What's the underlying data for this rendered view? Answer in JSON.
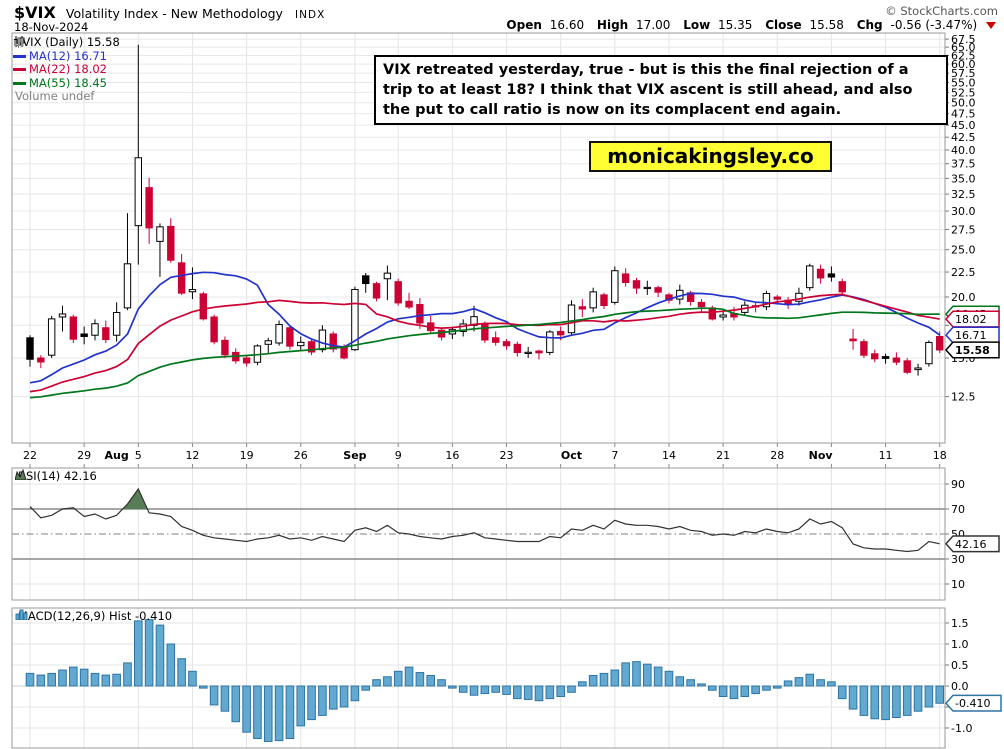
{
  "header": {
    "symbol": "$VIX",
    "name": "Volatility Index - New Methodology",
    "exchange": "INDX",
    "date": "18-Nov-2024",
    "credit": "© StockCharts.com"
  },
  "quote": {
    "open_label": "Open",
    "open": "16.60",
    "high_label": "High",
    "high": "17.00",
    "low_label": "Low",
    "low": "15.35",
    "close_label": "Close",
    "close": "15.58",
    "chg_label": "Chg",
    "chg": "-0.56 (-3.47%)"
  },
  "legend": {
    "symbol_label": "$VIX (Daily)",
    "symbol_value": "15.58",
    "ma12_label": "MA(12)",
    "ma12_value": "16.71",
    "ma22_label": "MA(22)",
    "ma22_value": "18.02",
    "ma55_label": "MA(55)",
    "ma55_value": "18.45",
    "volume_label": "Volume",
    "volume_value": "undef"
  },
  "rsi_header": {
    "label": "RSI(14)",
    "value": "42.16"
  },
  "macd_header": {
    "label": "MACD(12,26,9) Hist",
    "value": "-0.410"
  },
  "annotation": "VIX retreated yesterday, true - but is this the final rejection of a trip to at least 18? I think that VIX ascent is still ahead, and also the put to call ratio is now on its complacent end again.",
  "brand": "monicakingsley.co",
  "colors": {
    "down": "#cc0033",
    "up_border": "#000000",
    "ma12": "#2233cc",
    "ma22": "#cc0033",
    "ma55": "#00761c",
    "macd_bar": "#62a9d1",
    "macd_border": "#2e74a3",
    "rsi_fill": "#567d56",
    "brand_bg": "#ffff33",
    "grid": "#e4e4e4",
    "panel_border": "#9a9a9a"
  },
  "chart_data": [
    {
      "type": "candlestick",
      "title": "$VIX (Daily)",
      "scale": "log",
      "ylim": [
        12.5,
        67.5
      ],
      "y_ticks": [
        67.5,
        65,
        62.5,
        60,
        57.5,
        55,
        52.5,
        50,
        47.5,
        45,
        42.5,
        40,
        37.5,
        35,
        32.5,
        30,
        27.5,
        25,
        22.5,
        20,
        17.5,
        15,
        12.5
      ],
      "dates": [
        "Jul 22",
        "Jul 23",
        "Jul 24",
        "Jul 25",
        "Jul 26",
        "Jul 29",
        "Jul 30",
        "Jul 31",
        "Aug 1",
        "Aug 2",
        "Aug 5",
        "Aug 6",
        "Aug 7",
        "Aug 8",
        "Aug 9",
        "Aug 12",
        "Aug 13",
        "Aug 14",
        "Aug 15",
        "Aug 16",
        "Aug 19",
        "Aug 20",
        "Aug 21",
        "Aug 22",
        "Aug 23",
        "Aug 26",
        "Aug 27",
        "Aug 28",
        "Aug 29",
        "Aug 30",
        "Sep 3",
        "Sep 4",
        "Sep 5",
        "Sep 6",
        "Sep 9",
        "Sep 10",
        "Sep 11",
        "Sep 12",
        "Sep 13",
        "Sep 16",
        "Sep 17",
        "Sep 18",
        "Sep 19",
        "Sep 20",
        "Sep 23",
        "Sep 24",
        "Sep 25",
        "Sep 26",
        "Sep 27",
        "Sep 30",
        "Oct 1",
        "Oct 2",
        "Oct 3",
        "Oct 4",
        "Oct 7",
        "Oct 8",
        "Oct 9",
        "Oct 10",
        "Oct 11",
        "Oct 14",
        "Oct 15",
        "Oct 16",
        "Oct 17",
        "Oct 18",
        "Oct 21",
        "Oct 22",
        "Oct 23",
        "Oct 24",
        "Oct 25",
        "Oct 28",
        "Oct 29",
        "Oct 30",
        "Oct 31",
        "Nov 1",
        "Nov 4",
        "Nov 5",
        "Nov 6",
        "Nov 7",
        "Nov 8",
        "Nov 11",
        "Nov 12",
        "Nov 13",
        "Nov 14",
        "Nov 15",
        "Nov 18"
      ],
      "ohlc": [
        [
          16.5,
          16.7,
          14.4,
          14.91
        ],
        [
          15.0,
          15.2,
          14.3,
          14.72
        ],
        [
          15.2,
          18.3,
          15.0,
          18.04
        ],
        [
          18.2,
          19.2,
          17.0,
          18.46
        ],
        [
          18.2,
          18.4,
          16.1,
          16.39
        ],
        [
          16.8,
          17.4,
          16.0,
          16.6
        ],
        [
          16.7,
          18.0,
          16.3,
          17.63
        ],
        [
          17.3,
          17.9,
          16.1,
          16.36
        ],
        [
          16.7,
          19.5,
          16.2,
          18.59
        ],
        [
          19.0,
          29.7,
          18.8,
          23.39
        ],
        [
          28.0,
          65.73,
          23.3,
          38.57
        ],
        [
          33.5,
          35.1,
          25.7,
          27.71
        ],
        [
          26.0,
          28.3,
          22.0,
          27.85
        ],
        [
          27.9,
          29.0,
          23.5,
          23.79
        ],
        [
          23.5,
          24.5,
          20.2,
          20.37
        ],
        [
          20.5,
          23.0,
          19.8,
          20.71
        ],
        [
          20.3,
          20.5,
          17.9,
          18.04
        ],
        [
          18.2,
          18.4,
          16.0,
          16.19
        ],
        [
          16.3,
          16.6,
          15.0,
          15.23
        ],
        [
          15.4,
          15.7,
          14.6,
          14.8
        ],
        [
          15.0,
          15.2,
          14.4,
          14.65
        ],
        [
          14.7,
          16.0,
          14.5,
          15.88
        ],
        [
          16.0,
          16.5,
          15.3,
          16.27
        ],
        [
          16.1,
          17.9,
          15.9,
          17.56
        ],
        [
          17.3,
          17.4,
          15.6,
          15.86
        ],
        [
          15.9,
          16.6,
          15.5,
          16.15
        ],
        [
          16.2,
          16.4,
          15.2,
          15.43
        ],
        [
          15.6,
          17.5,
          15.4,
          17.11
        ],
        [
          16.8,
          17.0,
          15.4,
          15.65
        ],
        [
          15.8,
          16.0,
          14.9,
          15.0
        ],
        [
          15.6,
          21.0,
          15.5,
          20.72
        ],
        [
          22.1,
          22.4,
          20.4,
          21.31
        ],
        [
          21.3,
          21.5,
          19.6,
          19.9
        ],
        [
          21.8,
          23.2,
          19.7,
          22.38
        ],
        [
          21.5,
          21.8,
          19.2,
          19.45
        ],
        [
          19.6,
          20.4,
          18.9,
          19.08
        ],
        [
          19.3,
          19.9,
          17.2,
          17.69
        ],
        [
          17.7,
          18.3,
          16.9,
          17.07
        ],
        [
          17.1,
          17.3,
          16.3,
          16.56
        ],
        [
          16.8,
          17.4,
          16.4,
          17.14
        ],
        [
          17.0,
          18.0,
          16.6,
          17.61
        ],
        [
          17.5,
          19.2,
          17.0,
          18.23
        ],
        [
          17.6,
          17.8,
          16.1,
          16.33
        ],
        [
          16.5,
          17.0,
          15.9,
          16.15
        ],
        [
          16.2,
          16.4,
          15.6,
          15.89
        ],
        [
          16.0,
          16.2,
          15.1,
          15.39
        ],
        [
          15.4,
          15.8,
          15.0,
          15.41
        ],
        [
          15.5,
          15.6,
          14.9,
          15.37
        ],
        [
          15.4,
          17.1,
          15.2,
          16.96
        ],
        [
          17.0,
          17.4,
          16.3,
          16.73
        ],
        [
          16.9,
          19.7,
          16.7,
          19.26
        ],
        [
          19.1,
          19.8,
          18.2,
          18.9
        ],
        [
          19.0,
          20.9,
          18.6,
          20.49
        ],
        [
          20.2,
          20.4,
          18.9,
          19.21
        ],
        [
          19.5,
          23.1,
          19.3,
          22.64
        ],
        [
          22.3,
          22.9,
          21.0,
          21.42
        ],
        [
          21.6,
          21.9,
          20.3,
          20.86
        ],
        [
          20.9,
          21.6,
          20.2,
          20.93
        ],
        [
          20.9,
          21.1,
          20.0,
          20.46
        ],
        [
          20.2,
          20.4,
          19.4,
          19.7
        ],
        [
          19.8,
          21.2,
          19.3,
          20.64
        ],
        [
          20.4,
          20.6,
          19.2,
          19.58
        ],
        [
          19.5,
          19.8,
          18.7,
          19.11
        ],
        [
          19.0,
          19.2,
          17.9,
          18.03
        ],
        [
          18.2,
          18.9,
          17.9,
          18.37
        ],
        [
          18.5,
          19.1,
          17.9,
          18.2
        ],
        [
          18.6,
          19.6,
          18.3,
          19.24
        ],
        [
          19.2,
          19.5,
          18.6,
          19.08
        ],
        [
          19.1,
          20.6,
          18.8,
          20.33
        ],
        [
          20.0,
          20.2,
          19.3,
          19.8
        ],
        [
          19.7,
          20.0,
          18.9,
          19.34
        ],
        [
          19.6,
          20.9,
          19.2,
          20.35
        ],
        [
          20.9,
          23.4,
          20.6,
          23.16
        ],
        [
          22.8,
          23.3,
          21.3,
          21.88
        ],
        [
          22.3,
          23.1,
          21.5,
          21.98
        ],
        [
          21.5,
          21.8,
          20.1,
          20.49
        ],
        [
          16.4,
          17.2,
          15.6,
          16.27
        ],
        [
          16.2,
          16.4,
          15.0,
          15.2
        ],
        [
          15.3,
          15.6,
          14.7,
          14.94
        ],
        [
          15.1,
          15.3,
          14.6,
          14.97
        ],
        [
          15.0,
          15.4,
          14.5,
          14.71
        ],
        [
          14.8,
          15.0,
          13.9,
          14.02
        ],
        [
          14.2,
          14.6,
          13.8,
          14.31
        ],
        [
          14.6,
          16.3,
          14.4,
          16.14
        ],
        [
          16.6,
          17.0,
          15.35,
          15.58
        ]
      ],
      "ma": [
        {
          "name": "MA(12)",
          "period": 12,
          "seed": 13.2,
          "last": 16.71
        },
        {
          "name": "MA(22)",
          "period": 22,
          "seed": 12.7,
          "last": 18.02
        },
        {
          "name": "MA(55)",
          "period": 55,
          "seed": 12.4,
          "last": 18.45
        }
      ],
      "x_ticks": [
        {
          "i": 0,
          "label": "22",
          "bold": false
        },
        {
          "i": 5,
          "label": "29",
          "bold": false
        },
        {
          "i": 8,
          "label": "Aug",
          "bold": true
        },
        {
          "i": 10,
          "label": "5",
          "bold": false
        },
        {
          "i": 15,
          "label": "12",
          "bold": false
        },
        {
          "i": 20,
          "label": "19",
          "bold": false
        },
        {
          "i": 25,
          "label": "26",
          "bold": false
        },
        {
          "i": 30,
          "label": "Sep",
          "bold": true
        },
        {
          "i": 34,
          "label": "9",
          "bold": false
        },
        {
          "i": 39,
          "label": "16",
          "bold": false
        },
        {
          "i": 44,
          "label": "23",
          "bold": false
        },
        {
          "i": 50,
          "label": "Oct",
          "bold": true
        },
        {
          "i": 54,
          "label": "7",
          "bold": false
        },
        {
          "i": 59,
          "label": "14",
          "bold": false
        },
        {
          "i": 64,
          "label": "21",
          "bold": false
        },
        {
          "i": 69,
          "label": "28",
          "bold": false
        },
        {
          "i": 73,
          "label": "Nov",
          "bold": true
        },
        {
          "i": 79,
          "label": "11",
          "bold": false
        },
        {
          "i": 84,
          "label": "18",
          "bold": false
        }
      ],
      "grid_i": [
        0,
        5,
        10,
        15,
        20,
        25,
        30,
        34,
        39,
        44,
        49,
        54,
        59,
        64,
        69,
        74,
        79,
        84
      ],
      "price_labels": [
        {
          "value": 18.45,
          "text": "18.45",
          "color": "#00761c",
          "bold": false
        },
        {
          "value": 18.02,
          "text": "18.02",
          "color": "#cc0033",
          "bold": false
        },
        {
          "value": 16.71,
          "text": "16.71",
          "color": "#2233cc",
          "bold": false
        },
        {
          "value": 15.58,
          "text": "15.58",
          "color": "#000000",
          "bold": true
        }
      ]
    },
    {
      "type": "line",
      "name": "RSI(14)",
      "ylim": [
        0,
        100
      ],
      "ticks": [
        90,
        70,
        50,
        30,
        10
      ],
      "bands": {
        "overbought": 70,
        "mid": 50,
        "oversold": 30
      },
      "values": [
        72,
        63,
        65,
        70,
        71,
        64,
        66,
        62,
        65,
        74,
        86,
        67,
        66,
        64,
        56,
        53,
        49,
        47,
        46,
        45,
        44,
        46,
        47,
        49,
        46,
        47,
        45,
        48,
        46,
        44,
        53,
        55,
        52,
        57,
        51,
        50,
        48,
        47,
        46,
        48,
        49,
        51,
        47,
        46,
        45,
        44,
        44,
        44,
        48,
        47,
        54,
        53,
        57,
        54,
        61,
        58,
        57,
        57,
        56,
        54,
        56,
        53,
        52,
        49,
        50,
        49,
        52,
        51,
        54,
        52,
        51,
        54,
        62,
        58,
        60,
        55,
        42,
        39,
        38,
        38,
        37,
        36,
        37,
        44,
        42.16
      ],
      "last_label": {
        "value": 42.16,
        "text": "42.16"
      }
    },
    {
      "type": "bar",
      "name": "MACD(12,26,9) Histogram",
      "ylim": [
        1.85,
        -1.5
      ],
      "ticks": [
        1.5,
        1.0,
        0.5,
        0.0,
        -0.5,
        -1.0
      ],
      "values": [
        0.3,
        0.26,
        0.3,
        0.38,
        0.45,
        0.4,
        0.3,
        0.26,
        0.28,
        0.55,
        1.55,
        1.58,
        1.45,
        1.0,
        0.65,
        0.35,
        -0.05,
        -0.45,
        -0.6,
        -0.85,
        -1.1,
        -1.25,
        -1.32,
        -1.3,
        -1.25,
        -0.95,
        -0.8,
        -0.7,
        -0.55,
        -0.5,
        -0.35,
        -0.1,
        0.15,
        0.22,
        0.35,
        0.45,
        0.32,
        0.25,
        0.15,
        -0.05,
        -0.15,
        -0.22,
        -0.18,
        -0.15,
        -0.2,
        -0.3,
        -0.32,
        -0.35,
        -0.3,
        -0.25,
        -0.15,
        0.1,
        0.25,
        0.3,
        0.38,
        0.55,
        0.58,
        0.52,
        0.45,
        0.35,
        0.22,
        0.15,
        0.05,
        -0.1,
        -0.25,
        -0.3,
        -0.25,
        -0.18,
        -0.1,
        -0.05,
        0.12,
        0.2,
        0.28,
        0.15,
        0.1,
        -0.3,
        -0.55,
        -0.7,
        -0.78,
        -0.8,
        -0.75,
        -0.7,
        -0.6,
        -0.5,
        -0.41
      ],
      "last_label": {
        "value": -0.41,
        "text": "-0.410"
      }
    }
  ]
}
